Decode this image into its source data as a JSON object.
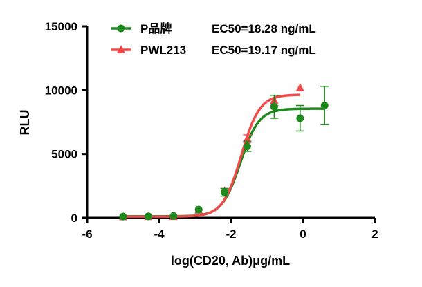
{
  "chart_data": {
    "type": "scatter",
    "title": "",
    "xlabel": "log(CD20, Ab)μg/mL",
    "ylabel": "RLU",
    "xlim": [
      -6,
      2
    ],
    "ylim": [
      0,
      15000
    ],
    "x_ticks": [
      -6,
      -4,
      -2,
      0,
      2
    ],
    "y_ticks": [
      0,
      5000,
      10000,
      15000
    ],
    "grid": false,
    "legend_position": "top-center",
    "series": [
      {
        "name": "P品牌",
        "annotation": "EC50=18.28 ng/mL",
        "color": "#1e8a1e",
        "marker": "circle",
        "x": [
          -5.0,
          -4.3,
          -3.6,
          -2.9,
          -2.18,
          -1.55,
          -0.8,
          -0.08,
          0.6
        ],
        "y": [
          100,
          120,
          150,
          650,
          2000,
          5600,
          8700,
          7800,
          8800
        ],
        "err": [
          0,
          0,
          0,
          0,
          300,
          400,
          900,
          1000,
          1500
        ],
        "fit": {
          "bottom": 120,
          "top": 8550,
          "log_ec50": -1.738,
          "hill": 1.7
        }
      },
      {
        "name": "PWL213",
        "annotation": "EC50=19.17 ng/mL",
        "color": "#f04a4a",
        "marker": "triangle",
        "x": [
          -5.0,
          -4.3,
          -3.6,
          -2.9,
          -2.18,
          -1.55,
          -0.8,
          -0.08
        ],
        "y": [
          80,
          90,
          100,
          600,
          2100,
          6200,
          9200,
          10200
        ],
        "err": [
          0,
          0,
          0,
          0,
          200,
          300,
          400,
          0
        ],
        "fit": {
          "bottom": 100,
          "top": 9650,
          "log_ec50": -1.717,
          "hill": 1.7
        }
      }
    ]
  }
}
